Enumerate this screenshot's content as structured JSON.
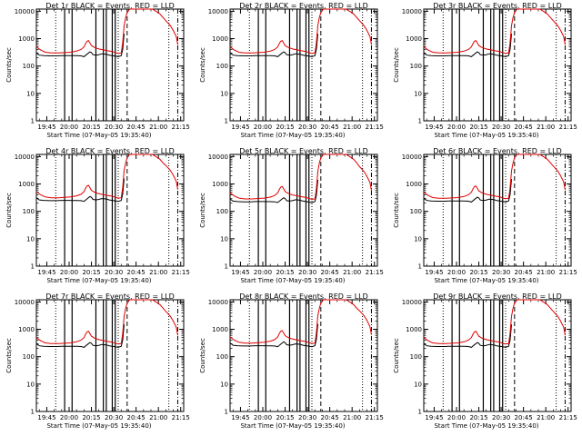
{
  "chart_data": {
    "type": "line",
    "layout": "3x3 grid of panels",
    "x_axis": {
      "label": "Start Time (07-May-05 19:35:40)",
      "ticks": [
        "19:45",
        "20:00",
        "20:15",
        "20:30",
        "20:45",
        "21:00",
        "21:15"
      ],
      "range_minutes_after_1945": [
        -7,
        92
      ]
    },
    "y_axis": {
      "label": "Counts/sec",
      "scale": "log",
      "ticks": [
        "1",
        "10",
        "100",
        "1000",
        "10000"
      ],
      "range": [
        1,
        12000
      ]
    },
    "vertical_markers": {
      "dotted": [
        "19:51",
        "20:33",
        "21:07"
      ],
      "solid": [
        "19:57",
        "20:02",
        "20:18",
        "20:23",
        "20:25",
        "20:29",
        "20:31"
      ],
      "dashed": [
        "20:39",
        "21:17"
      ],
      "dash_dot": [
        "21:13"
      ]
    },
    "series": [
      {
        "name": "Events",
        "color": "#000000",
        "points": [
          [
            "19:38",
            300
          ],
          [
            "19:40",
            250
          ],
          [
            "19:43",
            240
          ],
          [
            "19:47",
            235
          ],
          [
            "19:52",
            235
          ],
          [
            "19:55",
            240
          ],
          [
            "20:00",
            240
          ],
          [
            "20:05",
            238
          ],
          [
            "20:08",
            235
          ],
          [
            "20:10",
            220
          ],
          [
            "20:12",
            270
          ],
          [
            "20:14",
            330
          ],
          [
            "20:15",
            310
          ],
          [
            "20:16",
            260
          ],
          [
            "20:18",
            250
          ],
          [
            "20:20",
            260
          ],
          [
            "20:22",
            280
          ],
          [
            "20:25",
            270
          ],
          [
            "20:27",
            250
          ],
          [
            "20:29",
            240
          ],
          [
            "20:31",
            230
          ],
          [
            "20:33",
            220
          ],
          [
            "20:35",
            240
          ],
          [
            "20:36",
            400
          ],
          [
            "20:37",
            1500
          ]
        ]
      },
      {
        "name": "LLD",
        "color": "#e00000",
        "points": [
          [
            "19:38",
            500
          ],
          [
            "19:41",
            380
          ],
          [
            "19:44",
            320
          ],
          [
            "19:48",
            300
          ],
          [
            "19:53",
            300
          ],
          [
            "19:57",
            310
          ],
          [
            "20:01",
            320
          ],
          [
            "20:05",
            350
          ],
          [
            "20:08",
            400
          ],
          [
            "20:10",
            500
          ],
          [
            "20:11",
            650
          ],
          [
            "20:12",
            800
          ],
          [
            "20:13",
            850
          ],
          [
            "20:14",
            700
          ],
          [
            "20:15",
            560
          ],
          [
            "20:17",
            480
          ],
          [
            "20:20",
            420
          ],
          [
            "20:23",
            390
          ],
          [
            "20:26",
            360
          ],
          [
            "20:29",
            340
          ],
          [
            "20:31",
            310
          ],
          [
            "20:33",
            290
          ],
          [
            "20:35",
            300
          ],
          [
            "20:36",
            700
          ],
          [
            "20:37",
            3000
          ],
          [
            "20:38",
            6000
          ],
          [
            "20:39",
            9000
          ],
          [
            "20:40",
            11000
          ],
          [
            "20:41",
            12000
          ],
          [
            "20:56",
            12000
          ],
          [
            "20:57",
            11000
          ],
          [
            "20:59",
            9500
          ],
          [
            "21:01",
            8000
          ],
          [
            "21:03",
            6000
          ],
          [
            "21:05",
            4500
          ],
          [
            "21:08",
            3000
          ],
          [
            "21:10",
            2000
          ],
          [
            "21:12",
            1200
          ],
          [
            "21:13",
            600
          ]
        ]
      }
    ],
    "panels": [
      {
        "title": "Det 1r BLACK = Events, RED = LLD",
        "yscale": 1.0
      },
      {
        "title": "Det 2r BLACK = Events, RED = LLD",
        "yscale": 1.0
      },
      {
        "title": "Det 3r BLACK = Events, RED = LLD",
        "yscale": 1.0
      },
      {
        "title": "Det 4r BLACK = Events, RED = LLD",
        "yscale": 1.05
      },
      {
        "title": "Det 5r BLACK = Events, RED = LLD",
        "yscale": 0.95
      },
      {
        "title": "Det 6r BLACK = Events, RED = LLD",
        "yscale": 1.0
      },
      {
        "title": "Det 7r BLACK = Events, RED = LLD",
        "yscale": 1.0
      },
      {
        "title": "Det 8r BLACK = Events, RED = LLD",
        "yscale": 1.05
      },
      {
        "title": "Det 9r BLACK = Events, RED = LLD",
        "yscale": 1.0
      }
    ]
  }
}
